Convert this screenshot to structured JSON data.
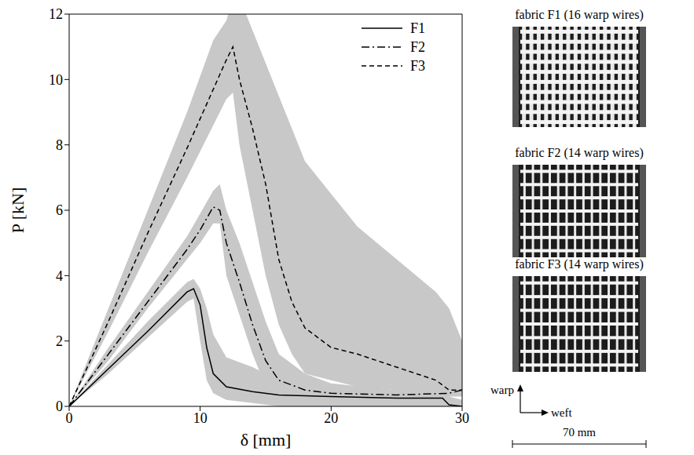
{
  "chart_data": {
    "type": "line",
    "x_label": "δ [mm]",
    "y_label": "P [kN]",
    "xlim": [
      0,
      30
    ],
    "ylim": [
      0,
      12
    ],
    "xticks": [
      0,
      10,
      20,
      30
    ],
    "yticks": [
      0,
      2,
      4,
      6,
      8,
      10,
      12
    ],
    "legend": "upper right",
    "series": [
      {
        "name": "F1",
        "color": "#000000",
        "line_style": "solid",
        "x": [
          0,
          3,
          6,
          9,
          9.5,
          10,
          10.5,
          11,
          12,
          14,
          16,
          20,
          25,
          28.5,
          29,
          30
        ],
        "values": [
          0,
          1.15,
          2.3,
          3.5,
          3.6,
          3.1,
          1.8,
          1.0,
          0.6,
          0.45,
          0.35,
          0.3,
          0.25,
          0.25,
          0.05,
          0
        ],
        "band_low": [
          0,
          1.0,
          2.1,
          3.2,
          3.3,
          2.0,
          0.8,
          0.4,
          0.2,
          0.1,
          0,
          0,
          0,
          0,
          0,
          0
        ],
        "band_high": [
          0,
          1.3,
          2.6,
          3.8,
          3.9,
          3.6,
          3.0,
          2.2,
          1.5,
          1.2,
          0.8,
          0.6,
          0.5,
          0.5,
          0.3,
          0.2
        ]
      },
      {
        "name": "F2",
        "color": "#000000",
        "line_style": "dashdot",
        "x": [
          0,
          3,
          6,
          9,
          10,
          11,
          11.5,
          12,
          13,
          14,
          15,
          16,
          18,
          20,
          25,
          29,
          30
        ],
        "values": [
          0,
          1.6,
          3.2,
          4.8,
          5.4,
          6.1,
          6.0,
          5.0,
          3.8,
          2.5,
          1.4,
          0.8,
          0.5,
          0.4,
          0.35,
          0.4,
          0.5
        ],
        "band_low": [
          0,
          1.4,
          3.0,
          4.5,
          5.0,
          5.6,
          5.6,
          4.0,
          2.8,
          1.6,
          0.6,
          0.3,
          0.2,
          0.2,
          0.2,
          0.3,
          0.4
        ],
        "band_high": [
          0,
          1.8,
          3.5,
          5.2,
          5.9,
          6.6,
          6.8,
          6.0,
          5.0,
          3.8,
          2.6,
          1.6,
          1.0,
          0.7,
          0.5,
          0.5,
          0.6
        ]
      },
      {
        "name": "F3",
        "color": "#000000",
        "line_style": "dashed",
        "x": [
          0,
          3,
          6,
          9,
          11,
          12,
          12.5,
          13,
          14,
          15,
          16,
          17,
          18,
          20,
          22,
          25,
          28,
          29,
          30
        ],
        "values": [
          0,
          2.6,
          5.3,
          7.9,
          9.7,
          10.6,
          11.0,
          10.0,
          8.5,
          6.8,
          4.5,
          3.2,
          2.4,
          1.8,
          1.6,
          1.2,
          0.8,
          0.5,
          0.5
        ],
        "band_low": [
          0,
          2.3,
          4.7,
          7.0,
          8.6,
          9.4,
          9.6,
          8.0,
          6.0,
          4.0,
          2.5,
          1.6,
          1.0,
          0.8,
          0.6,
          0.5,
          0.3,
          0.3,
          0.3
        ],
        "band_high": [
          0,
          3.0,
          6.0,
          9.0,
          11.2,
          11.8,
          12.5,
          12.5,
          11.5,
          10.5,
          9.5,
          8.5,
          7.5,
          6.5,
          5.5,
          4.5,
          3.5,
          3.0,
          2.0
        ]
      }
    ]
  },
  "fabrics": [
    {
      "title": "fabric F1 (16 warp wires)",
      "warp_wires": 16
    },
    {
      "title": "fabric F2 (14 warp wires)",
      "warp_wires": 14
    },
    {
      "title": "fabric F3 (14 warp wires)",
      "warp_wires": 14
    }
  ],
  "directions": {
    "warp": "warp",
    "weft": "weft"
  },
  "scale_bar": "70 mm"
}
